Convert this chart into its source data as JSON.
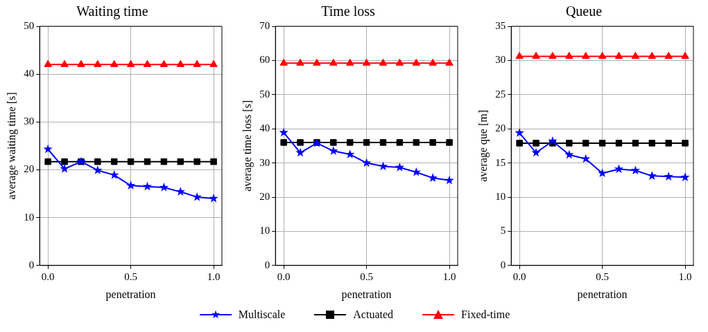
{
  "chart_data": [
    {
      "type": "line",
      "title": "Waiting time",
      "xlabel": "penetration",
      "ylabel": "average waiting time [s]",
      "x": [
        0,
        0.1,
        0.2,
        0.3,
        0.4,
        0.5,
        0.6,
        0.7,
        0.8,
        0.9,
        1.0
      ],
      "xlim": [
        -0.05,
        1.05
      ],
      "xticks": [
        {
          "value": 0,
          "label": "0.0"
        },
        {
          "value": 0.5,
          "label": "0.5"
        },
        {
          "value": 1,
          "label": "1.0"
        }
      ],
      "ylim": [
        0,
        50
      ],
      "yticks": [
        0,
        10,
        20,
        30,
        40,
        50
      ],
      "grid": true,
      "legend": "bottom",
      "series": [
        {
          "name": "Multiscale",
          "color": "#0000ff",
          "marker": "star",
          "values": [
            24.3,
            20.2,
            21.7,
            19.9,
            18.9,
            16.7,
            16.5,
            16.3,
            15.4,
            14.3,
            14.0
          ]
        },
        {
          "name": "Actuated",
          "color": "#000000",
          "marker": "square",
          "values": [
            21.7,
            21.7,
            21.7,
            21.7,
            21.7,
            21.7,
            21.7,
            21.7,
            21.7,
            21.7,
            21.7
          ]
        },
        {
          "name": "Fixed-time",
          "color": "#ff0000",
          "marker": "triangle",
          "values": [
            42,
            42,
            42,
            42,
            42,
            42,
            42,
            42,
            42,
            42,
            42
          ]
        }
      ]
    },
    {
      "type": "line",
      "title": "Time loss",
      "xlabel": "penetration",
      "ylabel": "average time loss [s]",
      "x": [
        0,
        0.1,
        0.2,
        0.3,
        0.4,
        0.5,
        0.6,
        0.7,
        0.8,
        0.9,
        1.0
      ],
      "xlim": [
        -0.05,
        1.05
      ],
      "xticks": [
        {
          "value": 0,
          "label": "0.0"
        },
        {
          "value": 0.5,
          "label": "0.5"
        },
        {
          "value": 1,
          "label": "1.0"
        }
      ],
      "ylim": [
        0,
        70
      ],
      "yticks": [
        0,
        10,
        20,
        30,
        40,
        50,
        60,
        70
      ],
      "grid": true,
      "series": [
        {
          "color": "#0000ff",
          "marker": "star",
          "values": [
            38.9,
            33.0,
            35.8,
            33.5,
            32.5,
            30.0,
            29.0,
            28.7,
            27.3,
            25.6,
            24.9
          ]
        },
        {
          "color": "#000000",
          "marker": "square",
          "values": [
            36,
            36,
            36,
            36,
            36,
            36,
            36,
            36,
            36,
            36,
            36
          ]
        },
        {
          "color": "#ff0000",
          "marker": "triangle",
          "values": [
            59.2,
            59.2,
            59.2,
            59.2,
            59.2,
            59.2,
            59.2,
            59.2,
            59.2,
            59.2,
            59.2
          ]
        }
      ]
    },
    {
      "type": "line",
      "title": "Queue",
      "xlabel": "penetration",
      "ylabel": "average que [m]",
      "x": [
        0,
        0.1,
        0.2,
        0.3,
        0.4,
        0.5,
        0.6,
        0.7,
        0.8,
        0.9,
        1.0
      ],
      "xlim": [
        -0.05,
        1.05
      ],
      "xticks": [
        {
          "value": 0,
          "label": "0.0"
        },
        {
          "value": 0.5,
          "label": "0.5"
        },
        {
          "value": 1,
          "label": "1.0"
        }
      ],
      "ylim": [
        0,
        35
      ],
      "yticks": [
        0,
        5,
        10,
        15,
        20,
        25,
        30,
        35
      ],
      "grid": true,
      "series": [
        {
          "color": "#0000ff",
          "marker": "star",
          "values": [
            19.4,
            16.5,
            18.2,
            16.2,
            15.6,
            13.5,
            14.1,
            13.9,
            13.1,
            13.0,
            12.9
          ]
        },
        {
          "color": "#000000",
          "marker": "square",
          "values": [
            17.9,
            17.9,
            17.9,
            17.9,
            17.9,
            17.9,
            17.9,
            17.9,
            17.9,
            17.9,
            17.9
          ]
        },
        {
          "color": "#ff0000",
          "marker": "triangle",
          "values": [
            30.6,
            30.6,
            30.6,
            30.6,
            30.6,
            30.6,
            30.6,
            30.6,
            30.6,
            30.6,
            30.6
          ]
        }
      ]
    }
  ]
}
